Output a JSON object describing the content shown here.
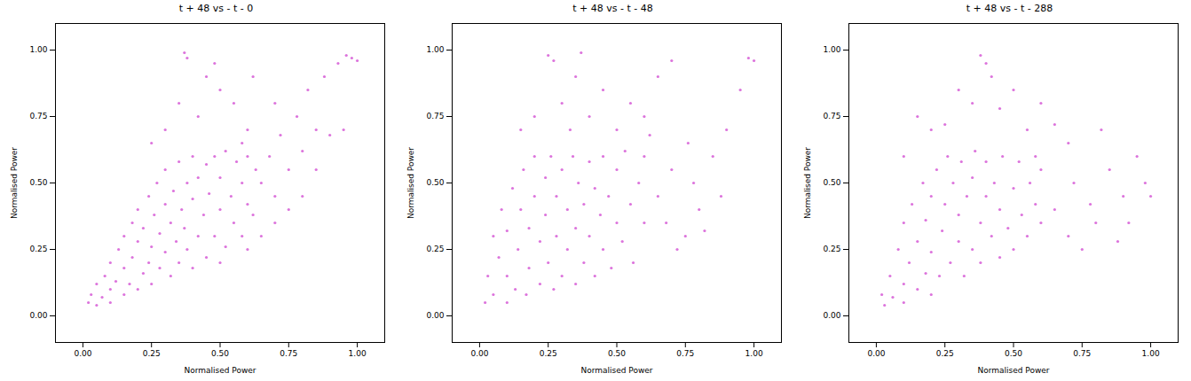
{
  "chart_data": [
    {
      "type": "scatter",
      "title": "t + 48 vs - t - 0",
      "xlabel": "Normalised Power",
      "ylabel": "Normalised Power",
      "color": "#bf00bf",
      "marker": "circle",
      "grid": false,
      "xlim": [
        -0.1,
        1.1
      ],
      "ylim": [
        -0.1,
        1.1
      ],
      "xticks": [
        {
          "value": 0,
          "label": "0.00"
        },
        {
          "value": 0.25,
          "label": "0.25"
        },
        {
          "value": 0.5,
          "label": "0.50"
        },
        {
          "value": 0.75,
          "label": "0.75"
        },
        {
          "value": 1,
          "label": "1.00"
        }
      ],
      "yticks": [
        {
          "value": 0,
          "label": "0.00"
        },
        {
          "value": 0.25,
          "label": "0.25"
        },
        {
          "value": 0.5,
          "label": "0.50"
        },
        {
          "value": 0.75,
          "label": "0.75"
        },
        {
          "value": 1,
          "label": "1.00"
        }
      ],
      "x": [
        0.02,
        0.03,
        0.05,
        0.05,
        0.07,
        0.08,
        0.1,
        0.1,
        0.1,
        0.12,
        0.13,
        0.15,
        0.15,
        0.15,
        0.17,
        0.18,
        0.18,
        0.2,
        0.2,
        0.2,
        0.22,
        0.22,
        0.24,
        0.24,
        0.25,
        0.25,
        0.26,
        0.27,
        0.28,
        0.28,
        0.3,
        0.3,
        0.3,
        0.32,
        0.32,
        0.33,
        0.34,
        0.35,
        0.35,
        0.36,
        0.37,
        0.38,
        0.38,
        0.4,
        0.4,
        0.4,
        0.42,
        0.42,
        0.44,
        0.45,
        0.45,
        0.46,
        0.48,
        0.48,
        0.5,
        0.5,
        0.52,
        0.52,
        0.54,
        0.55,
        0.56,
        0.58,
        0.58,
        0.6,
        0.6,
        0.62,
        0.63,
        0.65,
        0.68,
        0.7,
        0.72,
        0.75,
        0.78,
        0.8,
        0.82,
        0.85,
        0.88,
        0.9,
        0.93,
        0.96,
        0.98,
        1.0,
        0.95,
        0.85,
        0.3,
        0.35,
        0.37,
        0.38,
        0.42,
        0.45,
        0.5,
        0.48,
        0.55,
        0.6,
        0.25,
        0.62,
        0.7,
        0.58,
        0.5,
        0.6,
        0.65,
        0.7,
        0.75,
        0.8
      ],
      "values": [
        0.05,
        0.08,
        0.04,
        0.12,
        0.07,
        0.15,
        0.05,
        0.1,
        0.2,
        0.13,
        0.25,
        0.08,
        0.18,
        0.3,
        0.12,
        0.22,
        0.35,
        0.1,
        0.28,
        0.4,
        0.16,
        0.33,
        0.2,
        0.45,
        0.12,
        0.26,
        0.38,
        0.5,
        0.18,
        0.31,
        0.24,
        0.42,
        0.55,
        0.15,
        0.35,
        0.47,
        0.28,
        0.2,
        0.58,
        0.4,
        0.33,
        0.5,
        0.25,
        0.18,
        0.44,
        0.6,
        0.3,
        0.52,
        0.38,
        0.22,
        0.57,
        0.46,
        0.3,
        0.6,
        0.4,
        0.52,
        0.26,
        0.62,
        0.45,
        0.35,
        0.58,
        0.3,
        0.5,
        0.42,
        0.6,
        0.38,
        0.55,
        0.5,
        0.6,
        0.45,
        0.68,
        0.55,
        0.75,
        0.62,
        0.85,
        0.7,
        0.9,
        0.68,
        0.95,
        0.98,
        0.97,
        0.96,
        0.7,
        0.55,
        0.7,
        0.8,
        0.99,
        0.97,
        0.75,
        0.9,
        0.85,
        0.95,
        0.8,
        0.7,
        0.65,
        0.9,
        0.8,
        0.65,
        0.2,
        0.25,
        0.3,
        0.35,
        0.4,
        0.45
      ]
    },
    {
      "type": "scatter",
      "title": "t + 48 vs - t - 48",
      "xlabel": "Normalised Power",
      "ylabel": "Normalised Power",
      "color": "#bf00bf",
      "marker": "circle",
      "grid": false,
      "xlim": [
        -0.1,
        1.1
      ],
      "ylim": [
        -0.1,
        1.1
      ],
      "xticks": [
        {
          "value": 0,
          "label": "0.00"
        },
        {
          "value": 0.25,
          "label": "0.25"
        },
        {
          "value": 0.5,
          "label": "0.50"
        },
        {
          "value": 0.75,
          "label": "0.75"
        },
        {
          "value": 1,
          "label": "1.00"
        }
      ],
      "yticks": [
        {
          "value": 0,
          "label": "0.00"
        },
        {
          "value": 0.25,
          "label": "0.25"
        },
        {
          "value": 0.5,
          "label": "0.50"
        },
        {
          "value": 0.75,
          "label": "0.75"
        },
        {
          "value": 1,
          "label": "1.00"
        }
      ],
      "x": [
        0.02,
        0.03,
        0.05,
        0.05,
        0.07,
        0.08,
        0.1,
        0.1,
        0.1,
        0.12,
        0.13,
        0.14,
        0.15,
        0.16,
        0.17,
        0.18,
        0.18,
        0.2,
        0.2,
        0.22,
        0.22,
        0.24,
        0.24,
        0.25,
        0.26,
        0.27,
        0.28,
        0.28,
        0.3,
        0.3,
        0.32,
        0.32,
        0.34,
        0.35,
        0.35,
        0.36,
        0.38,
        0.38,
        0.4,
        0.4,
        0.42,
        0.42,
        0.44,
        0.45,
        0.45,
        0.47,
        0.48,
        0.5,
        0.5,
        0.52,
        0.53,
        0.55,
        0.56,
        0.58,
        0.6,
        0.6,
        0.15,
        0.2,
        0.25,
        0.27,
        0.3,
        0.33,
        0.37,
        0.35,
        0.4,
        0.45,
        0.5,
        0.55,
        0.6,
        0.65,
        0.7,
        0.62,
        0.65,
        0.68,
        0.7,
        0.75,
        0.78,
        0.8,
        0.82,
        0.85,
        0.88,
        0.9,
        0.95,
        0.98,
        1.0,
        0.72,
        0.76
      ],
      "values": [
        0.05,
        0.15,
        0.3,
        0.08,
        0.22,
        0.4,
        0.05,
        0.15,
        0.32,
        0.48,
        0.1,
        0.25,
        0.4,
        0.55,
        0.08,
        0.18,
        0.33,
        0.45,
        0.6,
        0.12,
        0.28,
        0.38,
        0.52,
        0.2,
        0.6,
        0.1,
        0.3,
        0.45,
        0.15,
        0.55,
        0.25,
        0.4,
        0.6,
        0.12,
        0.33,
        0.5,
        0.2,
        0.42,
        0.3,
        0.58,
        0.15,
        0.48,
        0.38,
        0.25,
        0.6,
        0.45,
        0.18,
        0.35,
        0.55,
        0.28,
        0.62,
        0.42,
        0.2,
        0.5,
        0.35,
        0.6,
        0.7,
        0.75,
        0.98,
        0.96,
        0.8,
        0.7,
        0.99,
        0.9,
        0.75,
        0.85,
        0.7,
        0.8,
        0.75,
        0.9,
        0.96,
        0.68,
        0.45,
        0.35,
        0.55,
        0.3,
        0.5,
        0.4,
        0.32,
        0.6,
        0.45,
        0.7,
        0.85,
        0.97,
        0.96,
        0.25,
        0.65
      ]
    },
    {
      "type": "scatter",
      "title": "t + 48 vs - t - 288",
      "xlabel": "Normalised Power",
      "ylabel": "Normalised Power",
      "color": "#bf00bf",
      "marker": "circle",
      "grid": false,
      "xlim": [
        -0.1,
        1.1
      ],
      "ylim": [
        -0.1,
        1.1
      ],
      "xticks": [
        {
          "value": 0,
          "label": "0.00"
        },
        {
          "value": 0.25,
          "label": "0.25"
        },
        {
          "value": 0.5,
          "label": "0.50"
        },
        {
          "value": 0.75,
          "label": "0.75"
        },
        {
          "value": 1,
          "label": "1.00"
        }
      ],
      "yticks": [
        {
          "value": 0,
          "label": "0.00"
        },
        {
          "value": 0.25,
          "label": "0.25"
        },
        {
          "value": 0.5,
          "label": "0.50"
        },
        {
          "value": 0.75,
          "label": "0.75"
        },
        {
          "value": 1,
          "label": "1.00"
        }
      ],
      "x": [
        0.02,
        0.03,
        0.05,
        0.06,
        0.08,
        0.1,
        0.1,
        0.1,
        0.12,
        0.13,
        0.15,
        0.15,
        0.17,
        0.18,
        0.18,
        0.2,
        0.2,
        0.2,
        0.22,
        0.23,
        0.24,
        0.25,
        0.26,
        0.27,
        0.28,
        0.3,
        0.3,
        0.31,
        0.32,
        0.33,
        0.35,
        0.35,
        0.36,
        0.38,
        0.38,
        0.4,
        0.4,
        0.42,
        0.43,
        0.45,
        0.45,
        0.46,
        0.48,
        0.5,
        0.5,
        0.52,
        0.53,
        0.55,
        0.56,
        0.58,
        0.58,
        0.6,
        0.6,
        0.1,
        0.15,
        0.2,
        0.25,
        0.3,
        0.35,
        0.38,
        0.4,
        0.42,
        0.45,
        0.5,
        0.55,
        0.6,
        0.65,
        0.7,
        0.65,
        0.7,
        0.72,
        0.75,
        0.78,
        0.8,
        0.85,
        0.88,
        0.9,
        0.95,
        0.98,
        1.0,
        0.82,
        0.92
      ],
      "values": [
        0.08,
        0.04,
        0.15,
        0.07,
        0.25,
        0.05,
        0.12,
        0.35,
        0.2,
        0.42,
        0.1,
        0.28,
        0.5,
        0.16,
        0.36,
        0.08,
        0.24,
        0.45,
        0.55,
        0.15,
        0.32,
        0.42,
        0.6,
        0.2,
        0.5,
        0.28,
        0.38,
        0.58,
        0.15,
        0.45,
        0.25,
        0.52,
        0.62,
        0.35,
        0.2,
        0.45,
        0.58,
        0.3,
        0.5,
        0.22,
        0.4,
        0.6,
        0.33,
        0.48,
        0.25,
        0.58,
        0.38,
        0.3,
        0.5,
        0.42,
        0.6,
        0.35,
        0.55,
        0.6,
        0.75,
        0.7,
        0.72,
        0.85,
        0.8,
        0.98,
        0.95,
        0.9,
        0.78,
        0.85,
        0.7,
        0.8,
        0.72,
        0.65,
        0.4,
        0.3,
        0.5,
        0.25,
        0.42,
        0.35,
        0.55,
        0.28,
        0.45,
        0.6,
        0.5,
        0.45,
        0.7,
        0.35
      ]
    }
  ]
}
